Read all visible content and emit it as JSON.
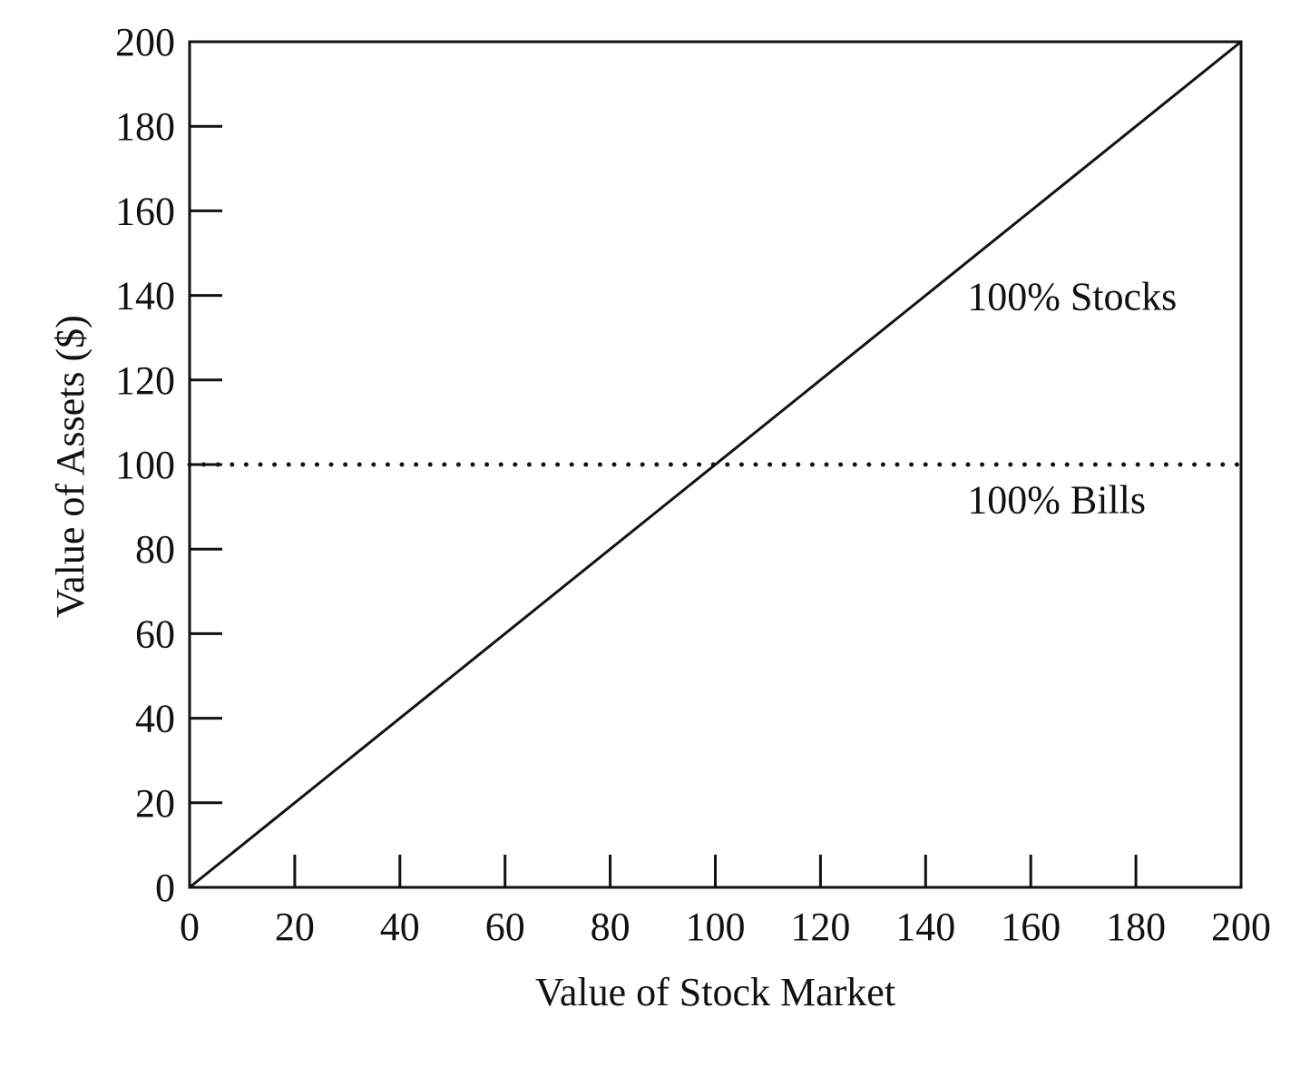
{
  "chart_data": {
    "type": "line",
    "title": "",
    "xlabel": "Value of Stock Market",
    "ylabel": "Value of Assets ($)",
    "xlim": [
      0,
      200
    ],
    "ylim": [
      0,
      200
    ],
    "x_ticks": [
      0,
      20,
      40,
      60,
      80,
      100,
      120,
      140,
      160,
      180,
      200
    ],
    "y_ticks": [
      0,
      20,
      40,
      60,
      80,
      100,
      120,
      140,
      160,
      180,
      200
    ],
    "grid": false,
    "legend": "none",
    "series": [
      {
        "name": "100% Stocks",
        "style": "solid",
        "x": [
          0,
          200
        ],
        "y": [
          0,
          200
        ],
        "label_at": [
          160,
          140
        ]
      },
      {
        "name": "100% Bills",
        "style": "dotted",
        "x": [
          0,
          200
        ],
        "y": [
          100,
          100
        ],
        "label_at": [
          160,
          92
        ]
      }
    ],
    "line_color": "#111111"
  }
}
